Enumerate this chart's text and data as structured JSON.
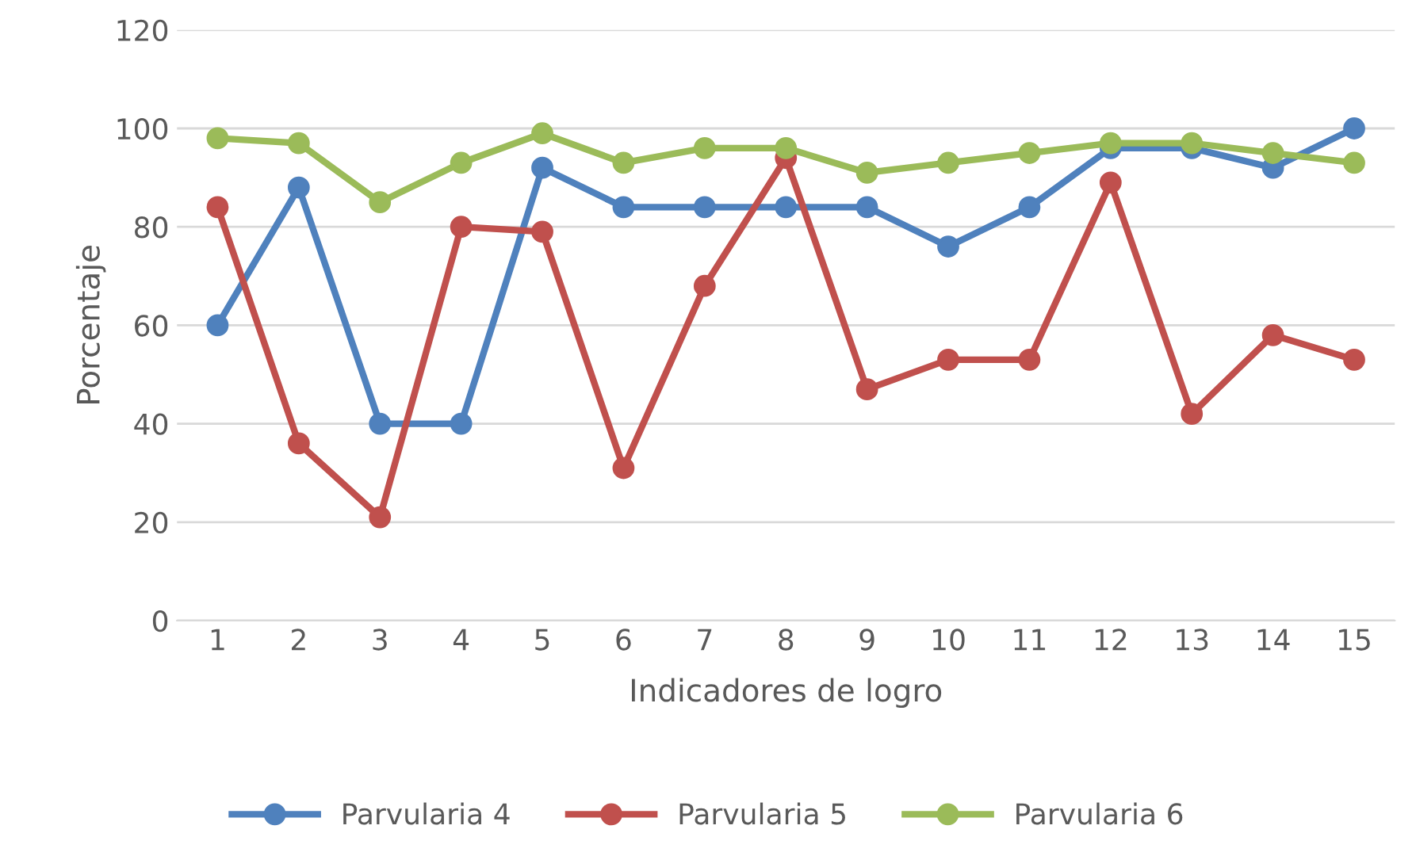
{
  "chart_data": {
    "type": "line",
    "xlabel": "Indicadores de logro",
    "ylabel": "Porcentaje",
    "categories": [
      "1",
      "2",
      "3",
      "4",
      "5",
      "6",
      "7",
      "8",
      "9",
      "10",
      "11",
      "12",
      "13",
      "14",
      "15"
    ],
    "series": [
      {
        "name": "Parvularia 4",
        "color": "#4f81bd",
        "values": [
          60,
          88,
          40,
          40,
          92,
          84,
          84,
          84,
          84,
          76,
          84,
          96,
          96,
          92,
          100
        ]
      },
      {
        "name": "Parvularia 5",
        "color": "#c0504d",
        "values": [
          84,
          36,
          21,
          80,
          79,
          31,
          68,
          94,
          47,
          53,
          53,
          89,
          42,
          58,
          53
        ]
      },
      {
        "name": "Parvularia 6",
        "color": "#9bbb59",
        "values": [
          98,
          97,
          85,
          93,
          99,
          93,
          96,
          96,
          91,
          93,
          95,
          97,
          97,
          95,
          93
        ]
      }
    ],
    "ylim": [
      0,
      120
    ],
    "yticks": [
      0,
      20,
      40,
      60,
      80,
      100,
      120
    ],
    "grid": "y",
    "legend": "bottom",
    "marker": "circle",
    "line_style": "solid"
  }
}
